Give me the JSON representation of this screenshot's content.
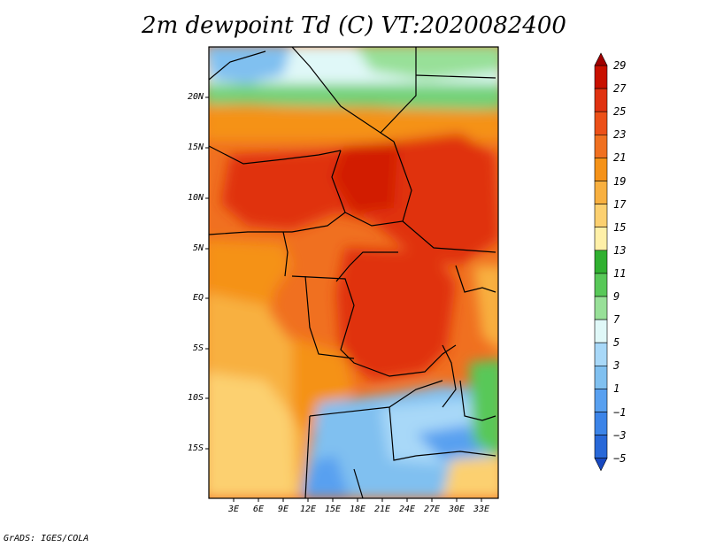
{
  "title": "2m dewpoint Td (C) VT:2020082400",
  "footer": "GrADS: IGES/COLA",
  "lat_labels": [
    "20N",
    "15N",
    "10N",
    "5N",
    "EQ",
    "5S",
    "10S",
    "15S"
  ],
  "lon_labels": [
    "3E",
    "6E",
    "9E",
    "12E",
    "15E",
    "18E",
    "21E",
    "24E",
    "27E",
    "30E",
    "33E"
  ],
  "colorbar": {
    "labels": [
      "29",
      "27",
      "25",
      "23",
      "21",
      "19",
      "17",
      "15",
      "13",
      "11",
      "9",
      "7",
      "5",
      "3",
      "1",
      "−1",
      "−3",
      "−5"
    ],
    "colors": [
      "#a00000",
      "#c81000",
      "#e03210",
      "#ec5018",
      "#f07020",
      "#f59218",
      "#f8b040",
      "#fcd070",
      "#fff0a8",
      "#30b030",
      "#58c858",
      "#98e098",
      "#e0f8f8",
      "#a8d8f8",
      "#80c0f0",
      "#58a0f0",
      "#3c84e8",
      "#2868d8",
      "#1848c0"
    ]
  }
}
